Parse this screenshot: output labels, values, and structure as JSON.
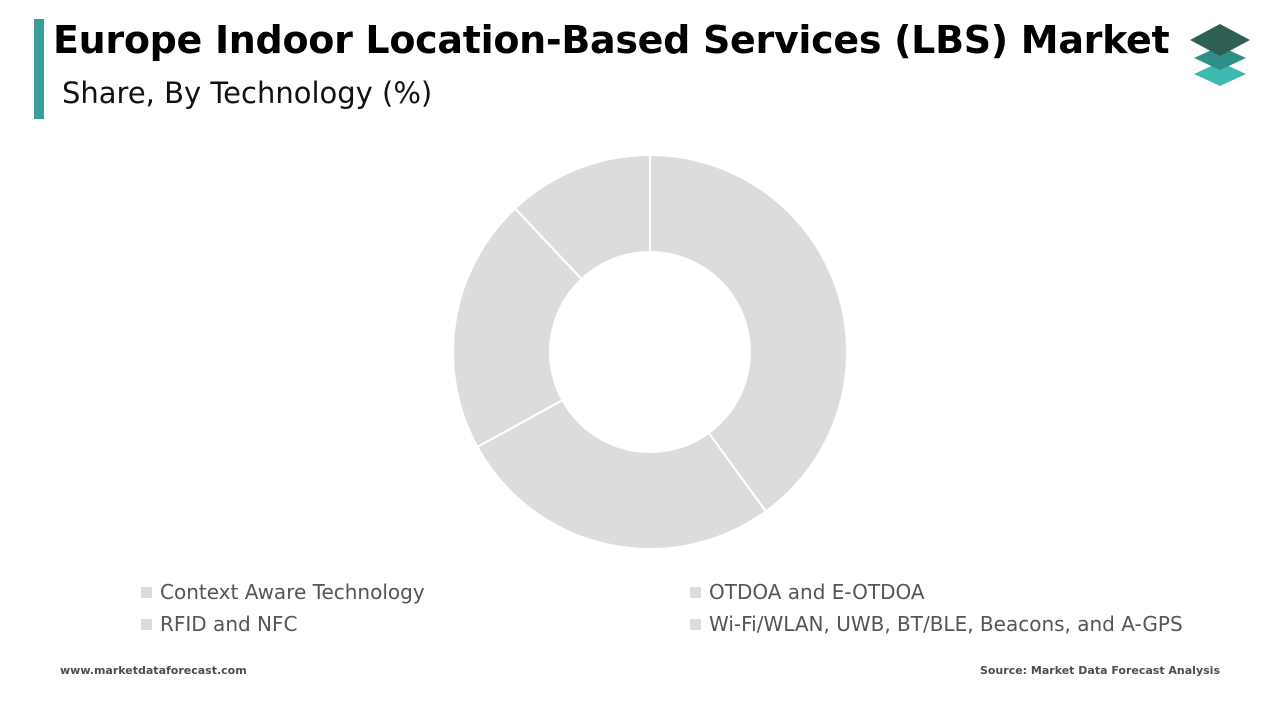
{
  "header": {
    "title": "Europe Indoor Location-Based Services (LBS) Market",
    "subtitle": "Share, By Technology (%)",
    "accent_color": "#3a9e99",
    "logo_icon": "stacked-layers-icon"
  },
  "chart_data": {
    "type": "pie",
    "variant": "donut",
    "title": "Europe Indoor Location-Based Services (LBS) Market",
    "subtitle": "Share, By Technology (%)",
    "categories": [
      "Context Aware Technology",
      "OTDOA and E-OTDOA",
      "RFID and NFC",
      "Wi-Fi/WLAN, UWB, BT/BLE, Beacons, and A-GPS"
    ],
    "values": [
      40,
      27,
      21,
      12
    ],
    "slice_color": "#dcdcdc",
    "separator_color": "#ffffff",
    "legend_position": "bottom",
    "data_labels": false
  },
  "footer": {
    "website": "www.marketdataforecast.com",
    "source": "Source: Market Data Forecast Analysis"
  }
}
